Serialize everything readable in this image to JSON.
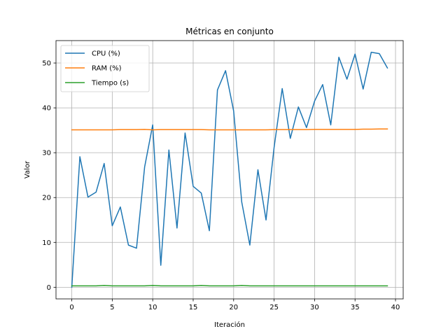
{
  "chart_data": {
    "type": "line",
    "title": "Métricas en conjunto",
    "xlabel": "Iteración",
    "ylabel": "Valor",
    "xlim": [
      -1.95,
      40.95
    ],
    "ylim": [
      -2.6,
      55.0
    ],
    "xticks": [
      0,
      5,
      10,
      15,
      20,
      25,
      30,
      35,
      40
    ],
    "yticks": [
      0,
      10,
      20,
      30,
      40,
      50
    ],
    "grid": true,
    "legend_position": "top-left",
    "x": [
      0,
      1,
      2,
      3,
      4,
      5,
      6,
      7,
      8,
      9,
      10,
      11,
      12,
      13,
      14,
      15,
      16,
      17,
      18,
      19,
      20,
      21,
      22,
      23,
      24,
      25,
      26,
      27,
      28,
      29,
      30,
      31,
      32,
      33,
      34,
      35,
      36,
      37,
      38,
      39
    ],
    "series": [
      {
        "name": "CPU (%)",
        "color": "#1f77b4",
        "values": [
          0,
          29.1,
          20.1,
          21.2,
          27.6,
          13.7,
          17.9,
          9.4,
          8.7,
          26.8,
          36.2,
          4.9,
          30.6,
          13.2,
          34.4,
          22.5,
          21.0,
          12.6,
          44.0,
          48.3,
          39.3,
          19.0,
          9.4,
          26.2,
          15.0,
          31.2,
          44.3,
          33.2,
          40.2,
          35.6,
          41.5,
          45.2,
          36.2,
          51.3,
          46.4,
          52.0,
          44.2,
          52.4,
          52.1,
          48.9
        ]
      },
      {
        "name": "RAM (%)",
        "color": "#ff7f0e",
        "values": [
          35.1,
          35.1,
          35.1,
          35.1,
          35.1,
          35.1,
          35.15,
          35.15,
          35.15,
          35.2,
          35.1,
          35.15,
          35.15,
          35.15,
          35.15,
          35.15,
          35.15,
          35.1,
          35.1,
          35.1,
          35.1,
          35.1,
          35.1,
          35.1,
          35.1,
          35.15,
          35.15,
          35.15,
          35.15,
          35.15,
          35.2,
          35.2,
          35.2,
          35.2,
          35.2,
          35.2,
          35.25,
          35.25,
          35.3,
          35.3
        ]
      },
      {
        "name": "Tiempo (s)",
        "color": "#2ca02c",
        "values": [
          0.3,
          0.3,
          0.3,
          0.3,
          0.4,
          0.3,
          0.3,
          0.3,
          0.3,
          0.3,
          0.4,
          0.3,
          0.3,
          0.3,
          0.3,
          0.3,
          0.4,
          0.3,
          0.3,
          0.3,
          0.3,
          0.4,
          0.3,
          0.3,
          0.3,
          0.3,
          0.3,
          0.3,
          0.3,
          0.3,
          0.3,
          0.3,
          0.3,
          0.3,
          0.3,
          0.3,
          0.3,
          0.3,
          0.3,
          0.3
        ]
      }
    ]
  }
}
